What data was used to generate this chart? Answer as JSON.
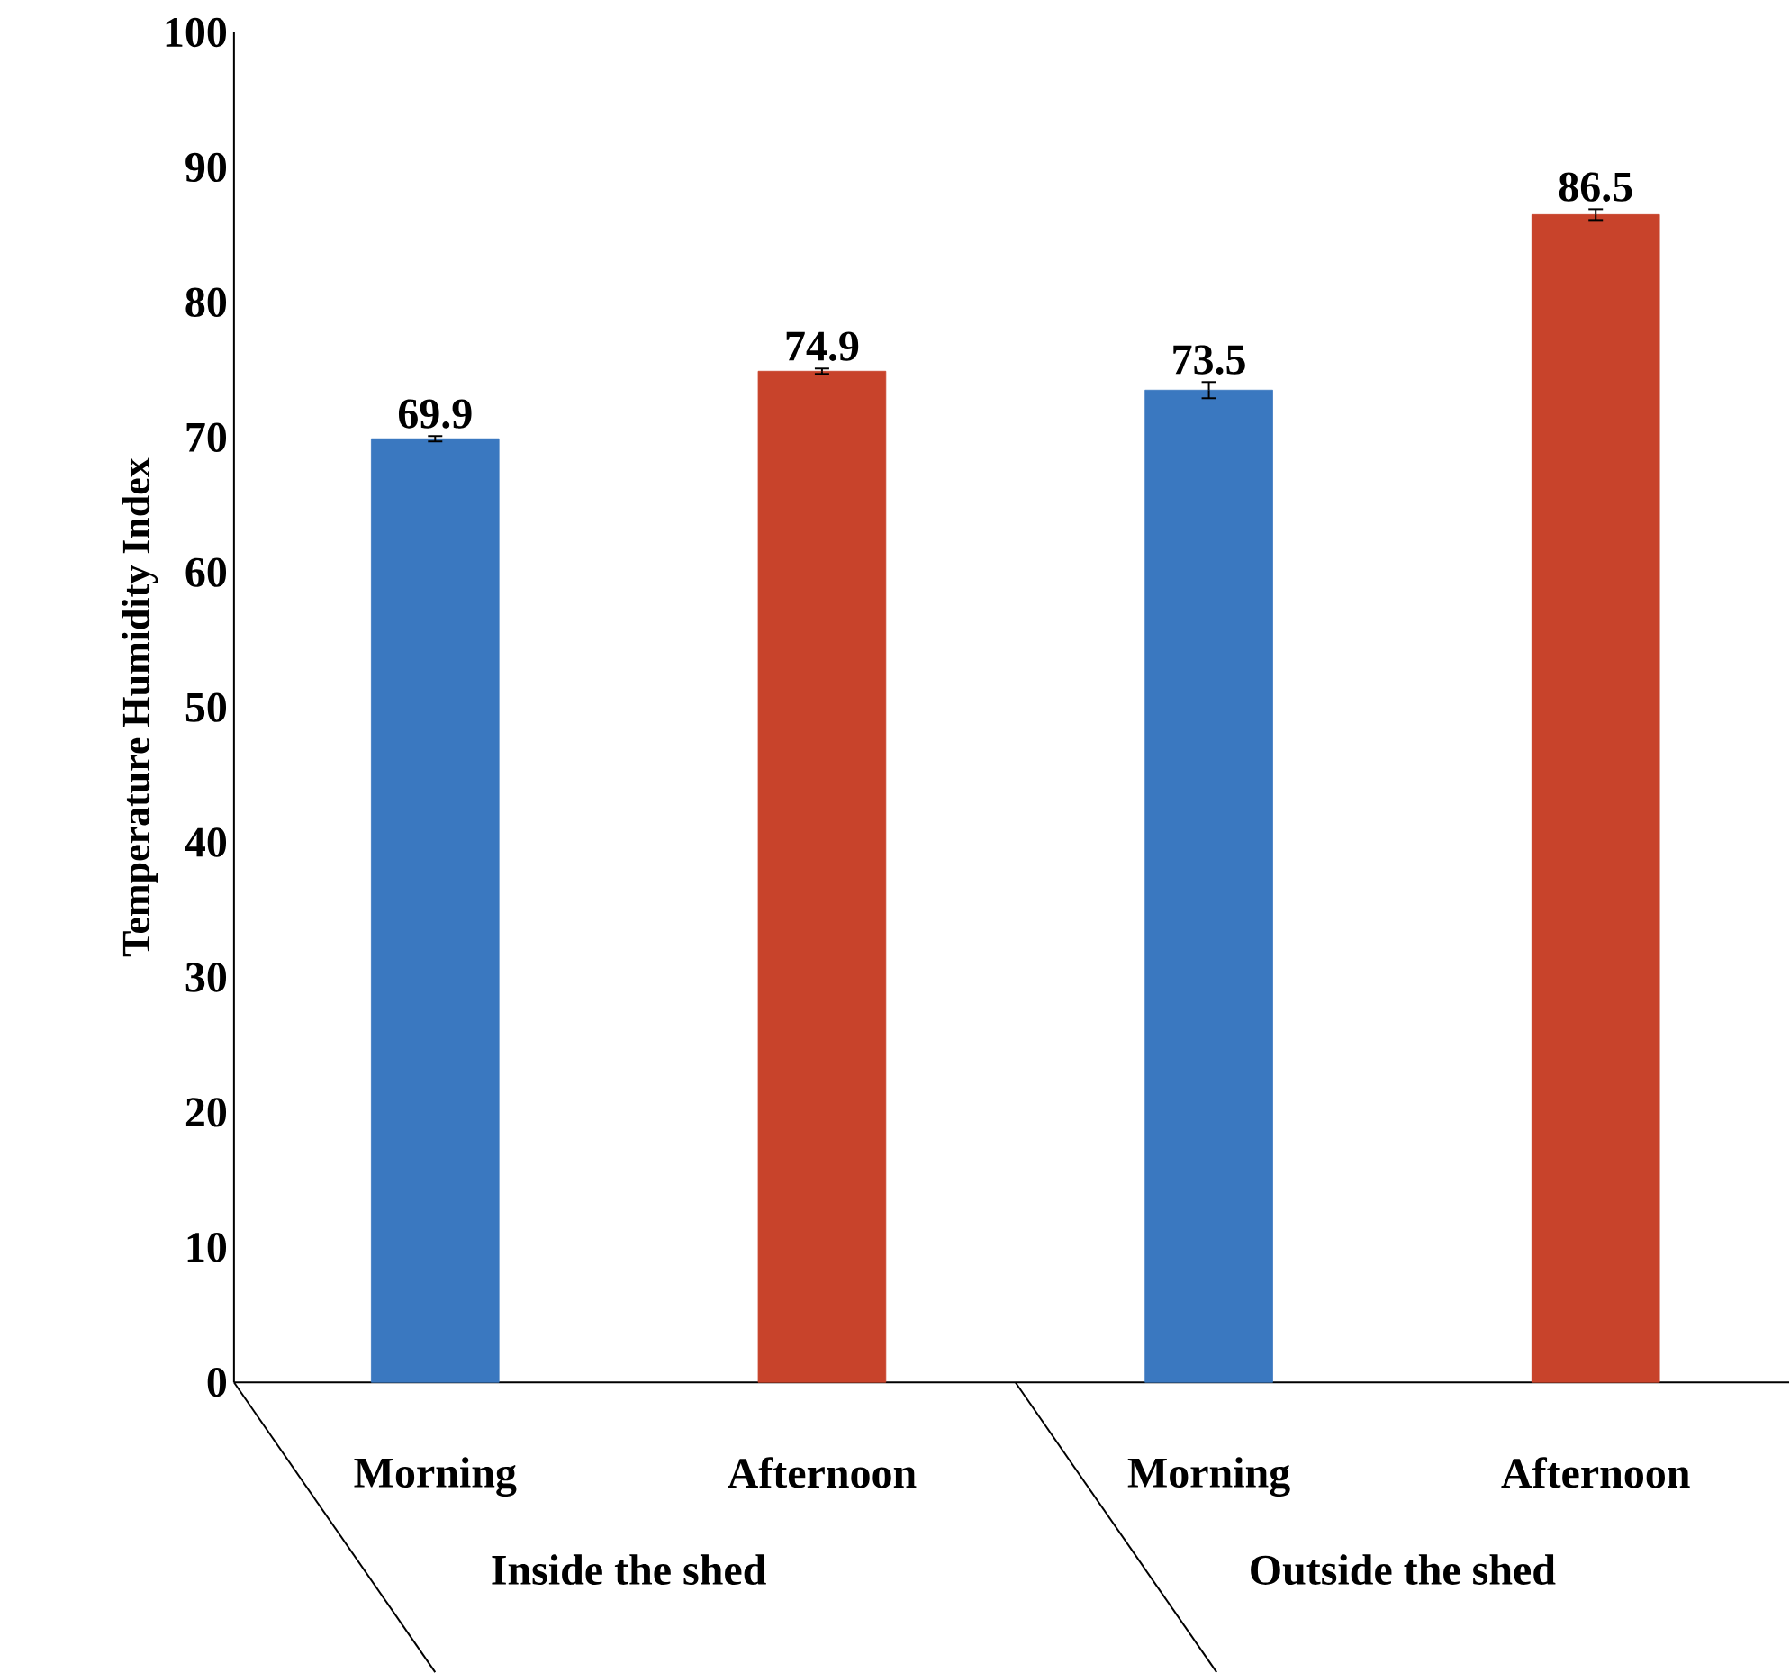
{
  "chart_data": {
    "type": "bar",
    "ylabel": "Temperature Humidity Index",
    "categories": [
      "Morning",
      "Afternoon",
      "Morning",
      "Afternoon"
    ],
    "values": [
      69.9,
      74.9,
      73.5,
      86.5
    ],
    "errors": [
      0.2,
      0.2,
      0.6,
      0.4
    ],
    "colors": [
      "#3a78c0",
      "#c8432b",
      "#3a78c0",
      "#c8432b"
    ],
    "ylim": [
      0,
      100
    ],
    "yticks": [
      0,
      10,
      20,
      30,
      40,
      50,
      60,
      70,
      80,
      90,
      100
    ],
    "data_labels": true,
    "annotations": [
      "Inside the shed",
      "Outside the shed"
    ]
  }
}
